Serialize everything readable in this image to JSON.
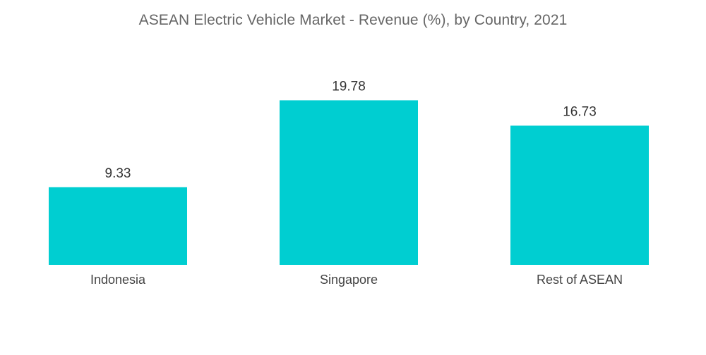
{
  "chart_data": {
    "type": "bar",
    "title": "ASEAN Electric Vehicle Market - Revenue (%), by Country, 2021",
    "categories": [
      "Indonesia",
      "Singapore",
      "Rest of ASEAN"
    ],
    "values": [
      9.33,
      19.78,
      16.73
    ],
    "value_labels": [
      "9.33",
      "19.78",
      "16.73"
    ],
    "xlabel": "",
    "ylabel": "",
    "ylim": [
      0,
      20
    ],
    "grid": false,
    "legend": "none",
    "bar_color": "#00CED1"
  }
}
